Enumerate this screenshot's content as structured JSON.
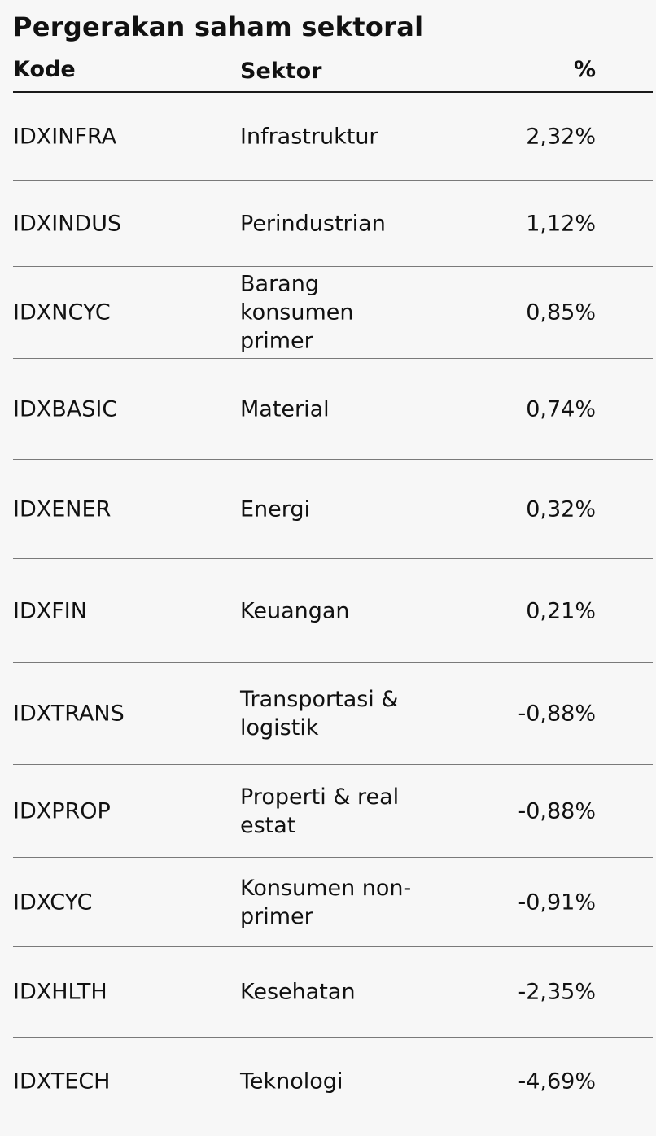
{
  "title": "Pergerakan saham sektoral",
  "columns": {
    "kode": "Kode",
    "sektor": "Sektor",
    "pct": "%"
  },
  "rows": [
    {
      "kode": "IDXINFRA",
      "sektor": "Infrastruktur",
      "pct": "2,32%"
    },
    {
      "kode": "IDXINDUS",
      "sektor": "Perindustrian",
      "pct": "1,12%"
    },
    {
      "kode": "IDXNCYC",
      "sektor": "Barang konsumen primer",
      "pct": "0,85%"
    },
    {
      "kode": "IDXBASIC",
      "sektor": "Material",
      "pct": "0,74%"
    },
    {
      "kode": "IDXENER",
      "sektor": "Energi",
      "pct": "0,32%"
    },
    {
      "kode": "IDXFIN",
      "sektor": "Keuangan",
      "pct": "0,21%"
    },
    {
      "kode": "IDXTRANS",
      "sektor": "Transportasi & logistik",
      "pct": "-0,88%"
    },
    {
      "kode": "IDXPROP",
      "sektor": "Properti & real estat",
      "pct": "-0,88%"
    },
    {
      "kode": "IDXCYC",
      "sektor": "Konsumen non-primer",
      "pct": "-0,91%"
    },
    {
      "kode": "IDXHLTH",
      "sektor": "Kesehatan",
      "pct": "-2,35%"
    },
    {
      "kode": "IDXTECH",
      "sektor": "Teknologi",
      "pct": "-4,69%"
    }
  ]
}
